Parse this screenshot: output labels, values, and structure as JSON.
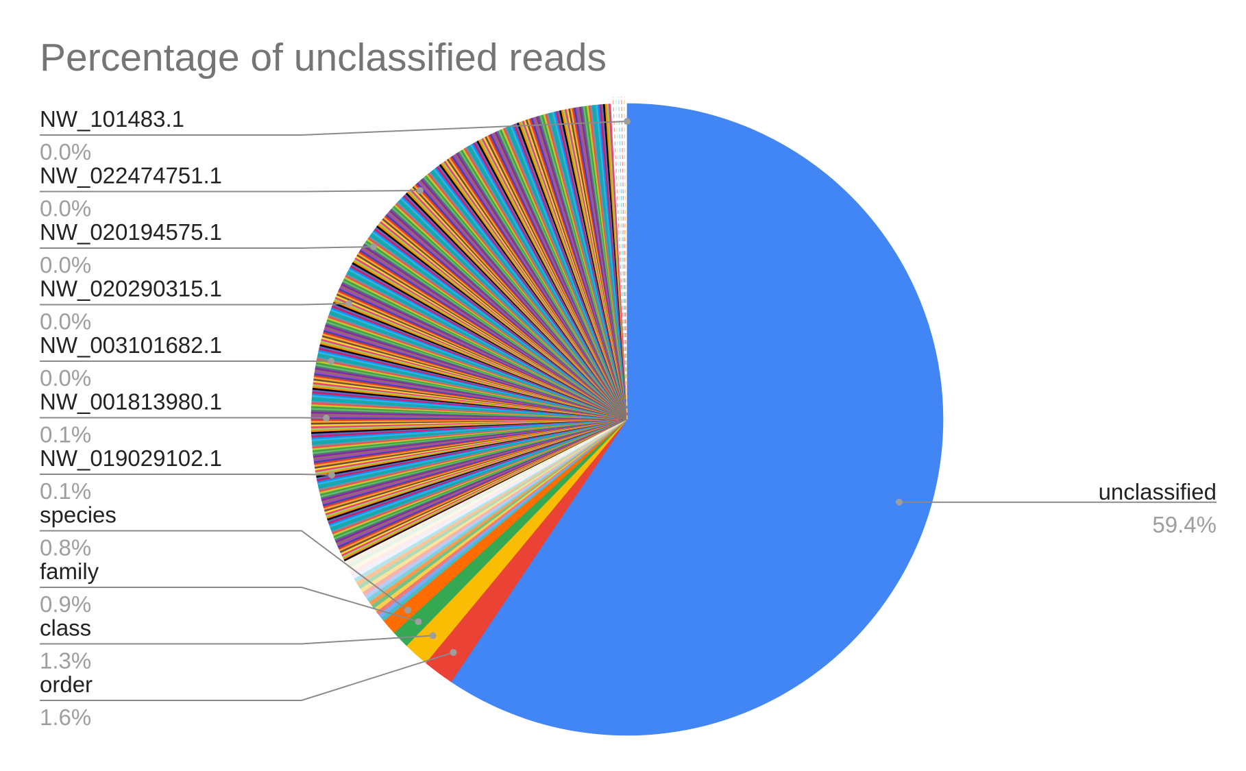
{
  "chart_data": {
    "type": "pie",
    "title": "Percentage of unclassified reads",
    "start_angle_deg": 0,
    "direction": "clockwise",
    "slices": [
      {
        "label": "unclassified",
        "value": 59.4,
        "color": "#4285f4",
        "labeled": true,
        "side": "right"
      },
      {
        "label": "order",
        "value": 1.6,
        "color": "#ea4335",
        "labeled": true,
        "side": "left"
      },
      {
        "label": "class",
        "value": 1.3,
        "color": "#fbbc04",
        "labeled": true,
        "side": "left"
      },
      {
        "label": "family",
        "value": 0.9,
        "color": "#34a853",
        "labeled": true,
        "side": "left"
      },
      {
        "label": "species",
        "value": 0.8,
        "color": "#ff6d01",
        "labeled": true,
        "side": "left"
      }
    ],
    "unlabeled_group": {
      "mid_colors": [
        "#46bdc6",
        "#7baaf7",
        "#f07b72",
        "#fcd04f",
        "#71c287",
        "#ff994d",
        "#7ed1d7",
        "#b3cefb",
        "#f7b4ae",
        "#fde49b",
        "#aedcba",
        "#ffc599",
        "#b5e5e8",
        "#ecf3fe",
        "#fdeceb",
        "#fff8e6",
        "#e6f4ea",
        "#fff0e6"
      ],
      "mid_total": 3.6,
      "stripe_colors": [
        "#000000",
        "#e53935",
        "#43a047",
        "#1e88e5",
        "#fdd835",
        "#8e24aa",
        "#00acc1",
        "#fb8c00",
        "#3949ab",
        "#c0ca33",
        "#d81b60",
        "#6d4c41",
        "#546e7a",
        "#26a69a",
        "#9ccc65",
        "#ab47bc",
        "#ef5350",
        "#5c6bc0",
        "#ffa726",
        "#66bb6a",
        "#29b6f6",
        "#ec407a",
        "#8d6e63",
        "#78909c"
      ],
      "stripe_total": 32.4
    },
    "callouts": [
      {
        "label": "NW_101483.1",
        "pct": "0.0%"
      },
      {
        "label": "NW_022474751.1",
        "pct": "0.0%"
      },
      {
        "label": "NW_020194575.1",
        "pct": "0.0%"
      },
      {
        "label": "NW_020290315.1",
        "pct": "0.0%"
      },
      {
        "label": "NW_003101682.1",
        "pct": "0.0%"
      },
      {
        "label": "NW_001813980.1",
        "pct": "0.1%"
      },
      {
        "label": "NW_019029102.1",
        "pct": "0.1%"
      },
      {
        "label": "species",
        "pct": "0.8%"
      },
      {
        "label": "family",
        "pct": "0.9%"
      },
      {
        "label": "class",
        "pct": "1.3%"
      },
      {
        "label": "order",
        "pct": "1.6%"
      }
    ],
    "right_callout": {
      "label": "unclassified",
      "pct": "59.4%"
    },
    "legend": "none"
  }
}
